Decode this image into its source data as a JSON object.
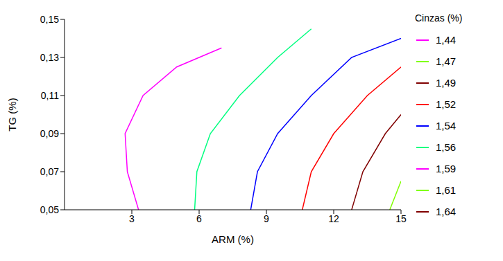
{
  "chart_data": {
    "type": "contour",
    "x_label": "ARM (%)",
    "y_label": "TG (%)",
    "legend_title": "Cinzas (%)",
    "xlim": [
      0,
      15
    ],
    "xticks": [
      3,
      6,
      9,
      12,
      15
    ],
    "ylim": [
      0.05,
      0.15
    ],
    "yticks": [
      {
        "value": 0.05,
        "label": "0,05"
      },
      {
        "value": 0.07,
        "label": "0,07"
      },
      {
        "value": 0.09,
        "label": "0,09"
      },
      {
        "value": 0.11,
        "label": "0,11"
      },
      {
        "value": 0.13,
        "label": "0,13"
      },
      {
        "value": 0.15,
        "label": "0,15"
      }
    ],
    "grid": false,
    "legend": "right",
    "series": [
      {
        "name": "1,44",
        "color": "#ff00ff",
        "x": [],
        "y": []
      },
      {
        "name": "1,47",
        "color": "#80ff00",
        "x": [
          14.5,
          15
        ],
        "y": [
          0.05,
          0.065
        ]
      },
      {
        "name": "1,49",
        "color": "#800000",
        "x": [
          12.8,
          13.3,
          14.3,
          15
        ],
        "y": [
          0.05,
          0.07,
          0.09,
          0.1
        ]
      },
      {
        "name": "1,52",
        "color": "#ff0000",
        "x": [
          10.6,
          11,
          12,
          13.5,
          15
        ],
        "y": [
          0.05,
          0.07,
          0.09,
          0.11,
          0.125
        ]
      },
      {
        "name": "1,54",
        "color": "#0000ff",
        "x": [
          8.3,
          8.6,
          9.5,
          11,
          12.8,
          15
        ],
        "y": [
          0.05,
          0.07,
          0.09,
          0.11,
          0.13,
          0.14
        ]
      },
      {
        "name": "1,56",
        "color": "#00ff80",
        "x": [
          5.8,
          5.9,
          6.5,
          7.8,
          9.5,
          11
        ],
        "y": [
          0.05,
          0.07,
          0.09,
          0.11,
          0.13,
          0.145
        ]
      },
      {
        "name": "1,59",
        "color": "#ff00ff",
        "x": [
          3.3,
          2.8,
          2.7,
          3.5,
          5,
          7
        ],
        "y": [
          0.05,
          0.07,
          0.09,
          0.11,
          0.125,
          0.135
        ]
      },
      {
        "name": "1,61",
        "color": "#80ff00",
        "x": [],
        "y": []
      },
      {
        "name": "1,64",
        "color": "#800000",
        "x": [],
        "y": []
      }
    ]
  }
}
